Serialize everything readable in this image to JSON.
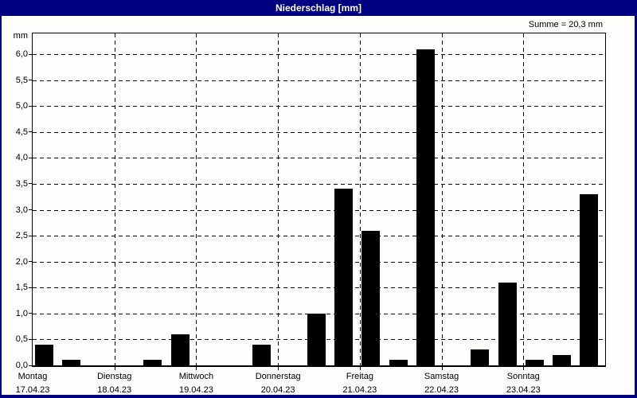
{
  "window": {
    "title": "Niederschlag [mm]"
  },
  "summary": {
    "label": "Summe = 20,3 mm"
  },
  "colors": {
    "titlebar": "#000080",
    "frame": "#000080",
    "background": "#fdfdfb",
    "bar": "#000000",
    "title_text": "#ffffff",
    "grid": "#000000"
  },
  "y_axis": {
    "unit_label": "mm",
    "tick_labels": [
      "0,0",
      "0,5",
      "1,0",
      "1,5",
      "2,0",
      "2,5",
      "3,0",
      "3,5",
      "4,0",
      "4,5",
      "5,0",
      "5,5",
      "6,0"
    ],
    "min": 0,
    "max": 6.4,
    "step": 0.5
  },
  "chart_data": {
    "type": "bar",
    "title": "Niederschlag [mm]",
    "ylabel": "mm",
    "ylim": [
      0,
      6.4
    ],
    "grid": "dashed",
    "bar_color": "#000000",
    "total_label": "Summe = 20,3 mm",
    "total_mm": 20.3,
    "slots_per_day": 3,
    "days": [
      {
        "name": "Montag",
        "date": "17.04.23",
        "values": [
          0.4,
          0.1,
          0
        ]
      },
      {
        "name": "Dienstag",
        "date": "18.04.23",
        "values": [
          0,
          0.1,
          0.6
        ]
      },
      {
        "name": "Mittwoch",
        "date": "19.04.23",
        "values": [
          0,
          0,
          0.4
        ]
      },
      {
        "name": "Donnerstag",
        "date": "20.04.23",
        "values": [
          0,
          1.0,
          3.4
        ]
      },
      {
        "name": "Freitag",
        "date": "21.04.23",
        "values": [
          2.6,
          0.1,
          6.1
        ]
      },
      {
        "name": "Samstag",
        "date": "22.04.23",
        "values": [
          0,
          0.3,
          1.6
        ]
      },
      {
        "name": "Sonntag",
        "date": "23.04.23",
        "values": [
          0.1,
          0.2,
          3.3
        ]
      }
    ]
  }
}
